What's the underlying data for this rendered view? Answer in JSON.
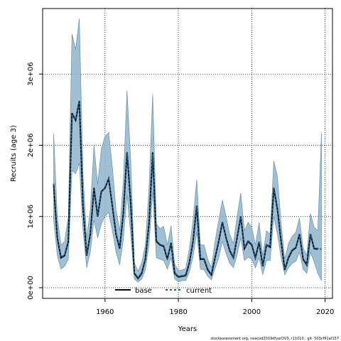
{
  "chart_data": {
    "type": "line",
    "xlabel": "Years",
    "ylabel": "Recruits (age 3)",
    "xlim": [
      1943,
      2022
    ],
    "ylim": [
      -150000,
      3920000
    ],
    "x_ticks": [
      1960,
      1980,
      2000,
      2020
    ],
    "y_ticks": [
      0,
      1000000,
      2000000,
      3000000
    ],
    "y_tick_labels": [
      "0e+00",
      "1e+06",
      "2e+06",
      "3e+06"
    ],
    "grid": true,
    "legend_placement": "bottom-center",
    "band_color": "#8fb4ca",
    "series": [
      {
        "name": "base",
        "line_color": "#000000",
        "line_style": "solid",
        "points": [
          [
            1946,
            1450000
          ],
          [
            1947,
            700000
          ],
          [
            1948,
            420000
          ],
          [
            1949,
            450000
          ],
          [
            1950,
            650000
          ],
          [
            1951,
            2450000
          ],
          [
            1952,
            2350000
          ],
          [
            1953,
            2620000
          ],
          [
            1954,
            1150000
          ],
          [
            1955,
            450000
          ],
          [
            1956,
            750000
          ],
          [
            1957,
            1400000
          ],
          [
            1958,
            1000000
          ],
          [
            1959,
            1350000
          ],
          [
            1960,
            1400000
          ],
          [
            1961,
            1530000
          ],
          [
            1962,
            1150000
          ],
          [
            1963,
            750000
          ],
          [
            1964,
            550000
          ],
          [
            1965,
            1050000
          ],
          [
            1966,
            1900000
          ],
          [
            1967,
            1200000
          ],
          [
            1968,
            200000
          ],
          [
            1969,
            130000
          ],
          [
            1970,
            200000
          ],
          [
            1971,
            400000
          ],
          [
            1972,
            900000
          ],
          [
            1973,
            1900000
          ],
          [
            1974,
            650000
          ],
          [
            1975,
            600000
          ],
          [
            1976,
            580000
          ],
          [
            1977,
            400000
          ],
          [
            1978,
            630000
          ],
          [
            1979,
            200000
          ],
          [
            1980,
            150000
          ],
          [
            1981,
            160000
          ],
          [
            1982,
            170000
          ],
          [
            1983,
            350000
          ],
          [
            1984,
            650000
          ],
          [
            1985,
            1150000
          ],
          [
            1986,
            400000
          ],
          [
            1987,
            400000
          ],
          [
            1988,
            250000
          ],
          [
            1989,
            180000
          ],
          [
            1990,
            420000
          ],
          [
            1991,
            650000
          ],
          [
            1992,
            920000
          ],
          [
            1993,
            700000
          ],
          [
            1994,
            520000
          ],
          [
            1995,
            420000
          ],
          [
            1996,
            700000
          ],
          [
            1997,
            1000000
          ],
          [
            1998,
            550000
          ],
          [
            1999,
            650000
          ],
          [
            2000,
            600000
          ],
          [
            2001,
            420000
          ],
          [
            2002,
            640000
          ],
          [
            2003,
            300000
          ],
          [
            2004,
            600000
          ],
          [
            2005,
            570000
          ],
          [
            2006,
            1400000
          ],
          [
            2007,
            1100000
          ],
          [
            2008,
            650000
          ],
          [
            2009,
            250000
          ],
          [
            2010,
            420000
          ],
          [
            2011,
            520000
          ],
          [
            2012,
            560000
          ],
          [
            2013,
            750000
          ],
          [
            2014,
            400000
          ],
          [
            2015,
            320000
          ],
          [
            2016,
            750000
          ],
          [
            2017,
            550000
          ],
          [
            2018,
            540000
          ]
        ]
      },
      {
        "name": "current",
        "line_color": "#1f5a85",
        "line_style": "dashed",
        "points": [
          [
            1946,
            1460000
          ],
          [
            1947,
            710000
          ],
          [
            1948,
            430000
          ],
          [
            1949,
            460000
          ],
          [
            1950,
            660000
          ],
          [
            1951,
            2440000
          ],
          [
            1952,
            2360000
          ],
          [
            1953,
            2610000
          ],
          [
            1954,
            1160000
          ],
          [
            1955,
            460000
          ],
          [
            1956,
            760000
          ],
          [
            1957,
            1390000
          ],
          [
            1958,
            1010000
          ],
          [
            1959,
            1340000
          ],
          [
            1960,
            1410000
          ],
          [
            1961,
            1520000
          ],
          [
            1962,
            1160000
          ],
          [
            1963,
            760000
          ],
          [
            1964,
            560000
          ],
          [
            1965,
            1060000
          ],
          [
            1966,
            1890000
          ],
          [
            1967,
            1190000
          ],
          [
            1968,
            210000
          ],
          [
            1969,
            140000
          ],
          [
            1970,
            210000
          ],
          [
            1971,
            410000
          ],
          [
            1972,
            910000
          ],
          [
            1973,
            1880000
          ],
          [
            1974,
            660000
          ],
          [
            1975,
            610000
          ],
          [
            1976,
            590000
          ],
          [
            1977,
            410000
          ],
          [
            1978,
            620000
          ],
          [
            1979,
            210000
          ],
          [
            1980,
            160000
          ],
          [
            1981,
            170000
          ],
          [
            1982,
            180000
          ],
          [
            1983,
            360000
          ],
          [
            1984,
            660000
          ],
          [
            1985,
            1140000
          ],
          [
            1986,
            410000
          ],
          [
            1987,
            410000
          ],
          [
            1988,
            260000
          ],
          [
            1989,
            190000
          ],
          [
            1990,
            430000
          ],
          [
            1991,
            660000
          ],
          [
            1992,
            910000
          ],
          [
            1993,
            710000
          ],
          [
            1994,
            530000
          ],
          [
            1995,
            430000
          ],
          [
            1996,
            710000
          ],
          [
            1997,
            990000
          ],
          [
            1998,
            560000
          ],
          [
            1999,
            660000
          ],
          [
            2000,
            610000
          ],
          [
            2001,
            430000
          ],
          [
            2002,
            650000
          ],
          [
            2003,
            310000
          ],
          [
            2004,
            610000
          ],
          [
            2005,
            580000
          ],
          [
            2006,
            1390000
          ],
          [
            2007,
            1090000
          ],
          [
            2008,
            660000
          ],
          [
            2009,
            260000
          ],
          [
            2010,
            430000
          ],
          [
            2011,
            530000
          ],
          [
            2012,
            570000
          ],
          [
            2013,
            740000
          ],
          [
            2014,
            410000
          ],
          [
            2015,
            330000
          ],
          [
            2016,
            740000
          ],
          [
            2017,
            560000
          ],
          [
            2018,
            550000
          ],
          [
            2019,
            540000
          ]
        ]
      }
    ],
    "band": {
      "x": [
        1946,
        1947,
        1948,
        1949,
        1950,
        1951,
        1952,
        1953,
        1954,
        1955,
        1956,
        1957,
        1958,
        1959,
        1960,
        1961,
        1962,
        1963,
        1964,
        1965,
        1966,
        1967,
        1968,
        1969,
        1970,
        1971,
        1972,
        1973,
        1974,
        1975,
        1976,
        1977,
        1978,
        1979,
        1980,
        1981,
        1982,
        1983,
        1984,
        1985,
        1986,
        1987,
        1988,
        1989,
        1990,
        1991,
        1992,
        1993,
        1994,
        1995,
        1996,
        1997,
        1998,
        1999,
        2000,
        2001,
        2002,
        2003,
        2004,
        2005,
        2006,
        2007,
        2008,
        2009,
        2010,
        2011,
        2012,
        2013,
        2014,
        2015,
        2016,
        2017,
        2018,
        2019
      ],
      "upper": [
        2170000,
        1000000,
        600000,
        650000,
        1000000,
        3560000,
        3350000,
        3780000,
        1600000,
        700000,
        1100000,
        2000000,
        1450000,
        1950000,
        2120000,
        2180000,
        1700000,
        1100000,
        800000,
        1500000,
        2770000,
        1800000,
        350000,
        230000,
        350000,
        600000,
        1400000,
        2720000,
        900000,
        830000,
        860000,
        600000,
        870000,
        330000,
        240000,
        250000,
        270000,
        550000,
        950000,
        1520000,
        600000,
        600000,
        400000,
        280000,
        650000,
        950000,
        1230000,
        1000000,
        750000,
        620000,
        1000000,
        1330000,
        800000,
        920000,
        850000,
        600000,
        920000,
        450000,
        800000,
        750000,
        1780000,
        1560000,
        900000,
        400000,
        620000,
        720000,
        780000,
        980000,
        560000,
        460000,
        1040000,
        850000,
        800000,
        2180000
      ],
      "lower": [
        950000,
        450000,
        260000,
        300000,
        400000,
        1650000,
        1600000,
        1750000,
        800000,
        280000,
        500000,
        950000,
        700000,
        900000,
        1000000,
        1060000,
        800000,
        500000,
        320000,
        680000,
        1300000,
        750000,
        120000,
        80000,
        120000,
        250000,
        600000,
        1350000,
        420000,
        400000,
        380000,
        260000,
        420000,
        120000,
        80000,
        100000,
        100000,
        220000,
        430000,
        780000,
        260000,
        250000,
        160000,
        110000,
        270000,
        420000,
        650000,
        480000,
        340000,
        280000,
        460000,
        700000,
        380000,
        430000,
        400000,
        280000,
        420000,
        180000,
        380000,
        380000,
        1000000,
        750000,
        420000,
        180000,
        280000,
        340000,
        370000,
        500000,
        260000,
        200000,
        500000,
        360000,
        200000,
        100000
      ]
    },
    "footer": "stockassessment.org, neacod2019dfvarDV3, r11010 , git: 503cf91af157"
  }
}
